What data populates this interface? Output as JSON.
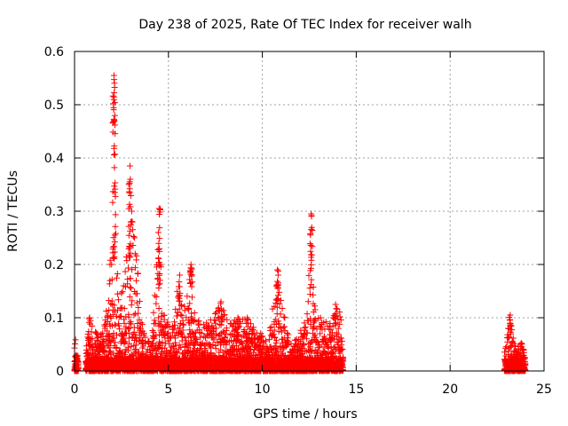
{
  "chart_data": {
    "type": "scatter",
    "title": "Day 238 of 2025, Rate Of TEC Index for receiver walh",
    "xlabel": "GPS time / hours",
    "ylabel": "ROTI / TECUs",
    "xlim": [
      0,
      25
    ],
    "ylim": [
      0,
      0.6
    ],
    "x_ticks": [
      "0",
      "5",
      "10",
      "15",
      "20",
      "25"
    ],
    "y_ticks": [
      "0",
      "0.1",
      "0.2",
      "0.3",
      "0.4",
      "0.5",
      "0.6"
    ],
    "grid": true,
    "marker": "+",
    "color": "#ff0000",
    "coverage_hours": [
      [
        0.0,
        0.2
      ],
      [
        0.6,
        14.3
      ],
      [
        22.9,
        24.0
      ]
    ],
    "envelope": [
      [
        0.0,
        0.07
      ],
      [
        0.2,
        0.04
      ],
      [
        0.6,
        0.05
      ],
      [
        0.8,
        0.1
      ],
      [
        1.0,
        0.09
      ],
      [
        1.3,
        0.06
      ],
      [
        1.6,
        0.09
      ],
      [
        1.85,
        0.16
      ],
      [
        2.0,
        0.33
      ],
      [
        2.1,
        0.555
      ],
      [
        2.25,
        0.2
      ],
      [
        2.5,
        0.15
      ],
      [
        2.7,
        0.2
      ],
      [
        2.95,
        0.385
      ],
      [
        3.1,
        0.29
      ],
      [
        3.3,
        0.22
      ],
      [
        3.5,
        0.12
      ],
      [
        3.8,
        0.07
      ],
      [
        4.1,
        0.05
      ],
      [
        4.3,
        0.17
      ],
      [
        4.5,
        0.305
      ],
      [
        4.7,
        0.12
      ],
      [
        4.9,
        0.1
      ],
      [
        5.2,
        0.09
      ],
      [
        5.6,
        0.18
      ],
      [
        5.9,
        0.12
      ],
      [
        6.2,
        0.2
      ],
      [
        6.5,
        0.1
      ],
      [
        7.0,
        0.09
      ],
      [
        7.3,
        0.1
      ],
      [
        7.8,
        0.13
      ],
      [
        8.2,
        0.09
      ],
      [
        8.7,
        0.1
      ],
      [
        9.2,
        0.1
      ],
      [
        9.6,
        0.08
      ],
      [
        10.0,
        0.07
      ],
      [
        10.3,
        0.05
      ],
      [
        10.8,
        0.19
      ],
      [
        11.1,
        0.115
      ],
      [
        11.5,
        0.05
      ],
      [
        12.0,
        0.07
      ],
      [
        12.4,
        0.13
      ],
      [
        12.6,
        0.295
      ],
      [
        12.8,
        0.12
      ],
      [
        13.2,
        0.1
      ],
      [
        13.6,
        0.09
      ],
      [
        13.9,
        0.125
      ],
      [
        14.2,
        0.105
      ],
      [
        14.3,
        0.03
      ],
      [
        22.9,
        0.04
      ],
      [
        23.2,
        0.105
      ],
      [
        23.5,
        0.04
      ],
      [
        23.8,
        0.055
      ],
      [
        24.0,
        0.03
      ]
    ],
    "gaps_hours": [
      [
        0.2,
        0.6
      ],
      [
        14.3,
        22.9
      ]
    ]
  }
}
